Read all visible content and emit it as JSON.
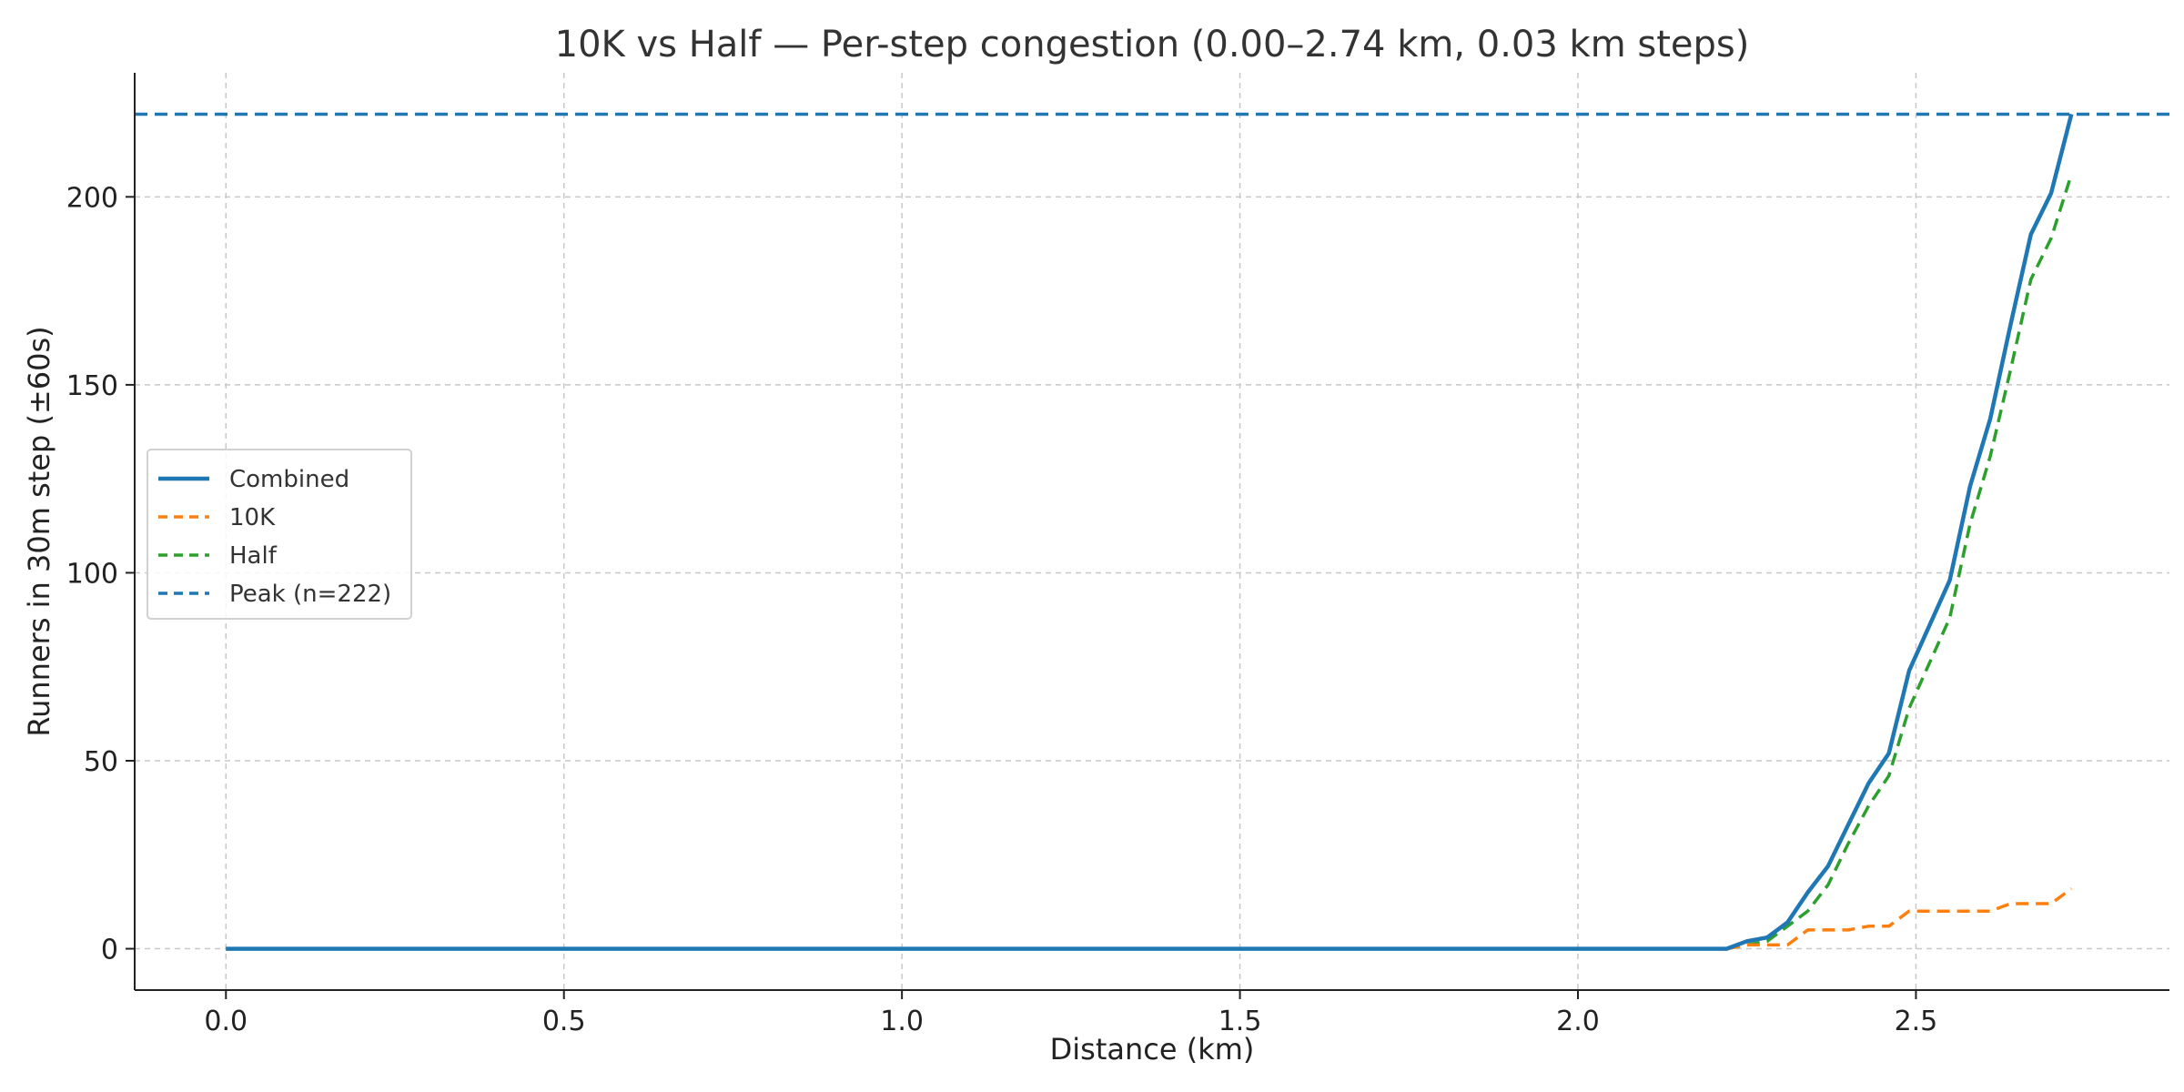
{
  "chart_data": {
    "type": "line",
    "title": "10K vs Half — Per-step congestion (0.00–2.74 km, 0.03 km steps)",
    "xlabel": "Distance (km)",
    "ylabel": "Runners in 30m step (±60s)",
    "xlim": [
      -0.135,
      2.875
    ],
    "ylim": [
      -11,
      233
    ],
    "xticks": [
      0.0,
      0.5,
      1.0,
      1.5,
      2.0,
      2.5
    ],
    "xtick_labels": [
      "0.0",
      "0.5",
      "1.0",
      "1.5",
      "2.0",
      "2.5"
    ],
    "yticks": [
      0,
      50,
      100,
      150,
      200
    ],
    "ytick_labels": [
      "0",
      "50",
      "100",
      "150",
      "200"
    ],
    "grid": true,
    "legend_position": "center-left",
    "x": [
      0.0,
      0.03,
      0.06,
      0.09,
      0.12,
      0.15,
      0.18,
      0.21,
      0.24,
      0.27,
      0.3,
      0.33,
      0.36,
      0.39,
      0.42,
      0.45,
      0.48,
      0.51,
      0.54,
      0.57,
      0.6,
      0.63,
      0.66,
      0.69,
      0.72,
      0.75,
      0.78,
      0.81,
      0.84,
      0.87,
      0.9,
      0.93,
      0.96,
      0.99,
      1.02,
      1.05,
      1.08,
      1.11,
      1.14,
      1.17,
      1.2,
      1.23,
      1.26,
      1.29,
      1.32,
      1.35,
      1.38,
      1.41,
      1.44,
      1.47,
      1.5,
      1.53,
      1.56,
      1.59,
      1.62,
      1.65,
      1.68,
      1.71,
      1.74,
      1.77,
      1.8,
      1.83,
      1.86,
      1.89,
      1.92,
      1.95,
      1.98,
      2.01,
      2.04,
      2.07,
      2.1,
      2.13,
      2.16,
      2.19,
      2.22,
      2.25,
      2.28,
      2.31,
      2.34,
      2.37,
      2.4,
      2.43,
      2.46,
      2.49,
      2.52,
      2.55,
      2.58,
      2.61,
      2.64,
      2.67,
      2.7,
      2.73
    ],
    "series": [
      {
        "name": "Combined",
        "color": "#1f77b4",
        "style": "solid",
        "values": [
          0,
          0,
          0,
          0,
          0,
          0,
          0,
          0,
          0,
          0,
          0,
          0,
          0,
          0,
          0,
          0,
          0,
          0,
          0,
          0,
          0,
          0,
          0,
          0,
          0,
          0,
          0,
          0,
          0,
          0,
          0,
          0,
          0,
          0,
          0,
          0,
          0,
          0,
          0,
          0,
          0,
          0,
          0,
          0,
          0,
          0,
          0,
          0,
          0,
          0,
          0,
          0,
          0,
          0,
          0,
          0,
          0,
          0,
          0,
          0,
          0,
          0,
          0,
          0,
          0,
          0,
          0,
          0,
          0,
          0,
          0,
          0,
          0,
          0,
          0,
          2,
          3,
          7,
          15,
          22,
          33,
          44,
          52,
          74,
          86,
          98,
          123,
          141,
          166,
          190,
          201,
          222
        ]
      },
      {
        "name": "10K",
        "color": "#ff7f0e",
        "style": "dashed",
        "values": [
          0,
          0,
          0,
          0,
          0,
          0,
          0,
          0,
          0,
          0,
          0,
          0,
          0,
          0,
          0,
          0,
          0,
          0,
          0,
          0,
          0,
          0,
          0,
          0,
          0,
          0,
          0,
          0,
          0,
          0,
          0,
          0,
          0,
          0,
          0,
          0,
          0,
          0,
          0,
          0,
          0,
          0,
          0,
          0,
          0,
          0,
          0,
          0,
          0,
          0,
          0,
          0,
          0,
          0,
          0,
          0,
          0,
          0,
          0,
          0,
          0,
          0,
          0,
          0,
          0,
          0,
          0,
          0,
          0,
          0,
          0,
          0,
          0,
          0,
          0,
          1,
          1,
          1,
          5,
          5,
          5,
          6,
          6,
          10,
          10,
          10,
          10,
          10,
          12,
          12,
          12,
          16
        ]
      },
      {
        "name": "Half",
        "color": "#2ca02c",
        "style": "dashed",
        "values": [
          0,
          0,
          0,
          0,
          0,
          0,
          0,
          0,
          0,
          0,
          0,
          0,
          0,
          0,
          0,
          0,
          0,
          0,
          0,
          0,
          0,
          0,
          0,
          0,
          0,
          0,
          0,
          0,
          0,
          0,
          0,
          0,
          0,
          0,
          0,
          0,
          0,
          0,
          0,
          0,
          0,
          0,
          0,
          0,
          0,
          0,
          0,
          0,
          0,
          0,
          0,
          0,
          0,
          0,
          0,
          0,
          0,
          0,
          0,
          0,
          0,
          0,
          0,
          0,
          0,
          0,
          0,
          0,
          0,
          0,
          0,
          0,
          0,
          0,
          0,
          1,
          2,
          6,
          10,
          17,
          28,
          38,
          46,
          64,
          76,
          88,
          113,
          131,
          154,
          178,
          189,
          206
        ]
      }
    ],
    "reference_lines": [
      {
        "name": "Peak (n=222)",
        "y": 222,
        "color": "#1f77b4",
        "style": "dashed"
      }
    ]
  }
}
